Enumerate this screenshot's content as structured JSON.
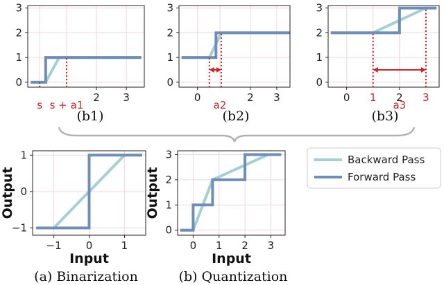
{
  "colors": {
    "backward": "#a4cfd6",
    "forward": "#6f8db5",
    "annotation": "#c0262c",
    "grid": "#f3d6dc",
    "brace": "#b0b0b0"
  },
  "legend": {
    "placement": "right",
    "items": [
      "Backward Pass",
      "Forward Pass"
    ]
  },
  "chart_data": [
    {
      "id": "b1",
      "type": "line",
      "caption": "(b1)",
      "xlim": [
        -0.3,
        3.6
      ],
      "ylim": [
        -0.2,
        3.1
      ],
      "xticks": [
        {
          "v": 2,
          "label": "2"
        },
        {
          "v": 3,
          "label": "3"
        }
      ],
      "yticks": [
        {
          "v": 0,
          "label": "0"
        },
        {
          "v": 1,
          "label": "1"
        },
        {
          "v": 2,
          "label": "2"
        },
        {
          "v": 3,
          "label": "3"
        }
      ],
      "red_ticks": [
        {
          "v": 0.1,
          "label": "s"
        },
        {
          "v": 1.0,
          "label": "s + a1"
        }
      ],
      "series": [
        {
          "key": "backward",
          "x": [
            -0.2,
            0.3,
            0.75,
            3.5
          ],
          "y": [
            0,
            0,
            1,
            1
          ]
        },
        {
          "key": "forward",
          "x": [
            -0.2,
            0.3,
            0.3,
            3.5
          ],
          "y": [
            0,
            0,
            1,
            1
          ]
        }
      ],
      "dotted": [
        {
          "x": 0.1,
          "y0": -0.2,
          "y1": 0
        },
        {
          "x": 1.0,
          "y0": -0.2,
          "y1": 1
        }
      ],
      "arrows": []
    },
    {
      "id": "b2",
      "type": "line",
      "caption": "(b2)",
      "xlim": [
        -0.7,
        3.5
      ],
      "ylim": [
        -0.2,
        3.1
      ],
      "xticks": [
        {
          "v": 0,
          "label": "0"
        },
        {
          "v": 2,
          "label": "2"
        },
        {
          "v": 3,
          "label": "3"
        }
      ],
      "yticks": [
        {
          "v": 0,
          "label": "0"
        },
        {
          "v": 1,
          "label": "1"
        },
        {
          "v": 2,
          "label": "2"
        },
        {
          "v": 3,
          "label": "3"
        }
      ],
      "red_ticks": [
        {
          "v": 0.85,
          "label": "a2"
        }
      ],
      "series": [
        {
          "key": "backward",
          "x": [
            -0.6,
            0.45,
            0.9,
            3.5
          ],
          "y": [
            1,
            1,
            2,
            2
          ]
        },
        {
          "key": "forward",
          "x": [
            -0.6,
            0.7,
            0.7,
            3.5
          ],
          "y": [
            1,
            1,
            2,
            2
          ]
        }
      ],
      "dotted": [
        {
          "x": 0.45,
          "y0": -0.2,
          "y1": 1
        },
        {
          "x": 0.9,
          "y0": -0.2,
          "y1": 2
        }
      ],
      "arrows": [
        {
          "x0": 0.45,
          "x1": 0.9,
          "y": 0.5
        }
      ]
    },
    {
      "id": "b3",
      "type": "line",
      "caption": "(b3)",
      "xlim": [
        -0.7,
        3.5
      ],
      "ylim": [
        -0.2,
        3.1
      ],
      "xticks": [
        {
          "v": 0,
          "label": "0"
        },
        {
          "v": 2,
          "label": "2"
        }
      ],
      "yticks": [
        {
          "v": 0,
          "label": "0"
        },
        {
          "v": 1,
          "label": "1"
        },
        {
          "v": 2,
          "label": "2"
        },
        {
          "v": 3,
          "label": "3"
        }
      ],
      "red_ticks": [
        {
          "v": 1,
          "label": "1"
        },
        {
          "v": 3,
          "label": "3"
        },
        {
          "v": 2,
          "label": "a3"
        }
      ],
      "series": [
        {
          "key": "backward",
          "x": [
            -0.6,
            1,
            3,
            3.4
          ],
          "y": [
            2,
            2,
            3,
            3
          ]
        },
        {
          "key": "forward",
          "x": [
            -0.6,
            2,
            2,
            3.4
          ],
          "y": [
            2,
            2,
            3,
            3
          ]
        }
      ],
      "dotted": [
        {
          "x": 1,
          "y0": -0.2,
          "y1": 2
        },
        {
          "x": 3,
          "y0": -0.2,
          "y1": 3
        }
      ],
      "arrows": [
        {
          "x0": 1,
          "x1": 3,
          "y": 0.5
        }
      ]
    },
    {
      "id": "a",
      "type": "line",
      "caption": "(a) Binarization",
      "xlabel": "Input",
      "ylabel": "Output",
      "xlim": [
        -1.6,
        1.6
      ],
      "ylim": [
        -1.2,
        1.12
      ],
      "xticks": [
        {
          "v": -1,
          "label": "−1"
        },
        {
          "v": 0,
          "label": "0"
        },
        {
          "v": 1,
          "label": "1"
        }
      ],
      "yticks": [
        {
          "v": -1,
          "label": "−1"
        },
        {
          "v": 0,
          "label": "0"
        },
        {
          "v": 1,
          "label": "1"
        }
      ],
      "red_ticks": [],
      "series": [
        {
          "key": "backward",
          "x": [
            -1.5,
            -1,
            1,
            1.5
          ],
          "y": [
            -1,
            -1,
            1,
            1
          ]
        },
        {
          "key": "forward",
          "x": [
            -1.5,
            0,
            0,
            1.5
          ],
          "y": [
            -1,
            -1,
            1,
            1
          ]
        }
      ],
      "dotted": [],
      "arrows": []
    },
    {
      "id": "b",
      "type": "line",
      "caption": "(b) Quantization",
      "xlabel": "Input",
      "ylabel": "Output",
      "xlim": [
        -0.6,
        3.55
      ],
      "ylim": [
        -0.2,
        3.15
      ],
      "xticks": [
        {
          "v": 0,
          "label": "0"
        },
        {
          "v": 1,
          "label": "1"
        },
        {
          "v": 2,
          "label": "2"
        },
        {
          "v": 3,
          "label": "3"
        }
      ],
      "yticks": [
        {
          "v": 0,
          "label": "0"
        },
        {
          "v": 1,
          "label": "1"
        },
        {
          "v": 2,
          "label": "2"
        },
        {
          "v": 3,
          "label": "3"
        }
      ],
      "red_ticks": [],
      "series": [
        {
          "key": "backward",
          "x": [
            -0.5,
            0,
            0.75,
            2.9,
            3.4
          ],
          "y": [
            0,
            0,
            2,
            3,
            3
          ]
        },
        {
          "key": "forward",
          "x": [
            -0.5,
            0,
            0,
            0.75,
            0.75,
            2,
            2,
            3.4
          ],
          "y": [
            0,
            0,
            1,
            1,
            2,
            2,
            3,
            3
          ]
        }
      ],
      "dotted": [],
      "arrows": []
    }
  ]
}
